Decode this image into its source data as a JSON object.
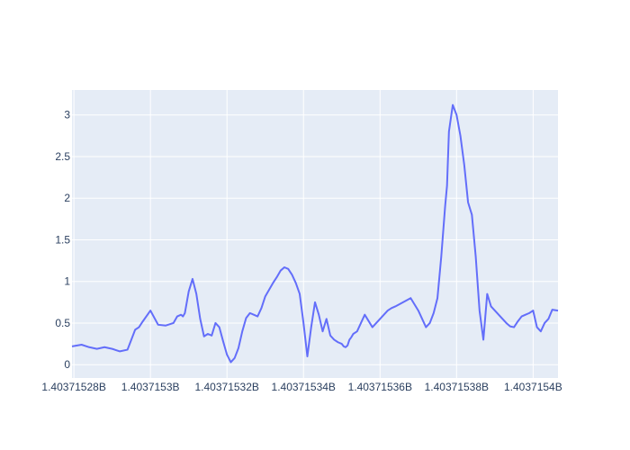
{
  "chart_data": {
    "type": "line",
    "title": "",
    "xlabel": "",
    "ylabel": "",
    "x_ticks": [
      {
        "value": 1403715280,
        "label": "1.40371528B"
      },
      {
        "value": 1403715300,
        "label": "1.4037153B"
      },
      {
        "value": 1403715320,
        "label": "1.40371532B"
      },
      {
        "value": 1403715340,
        "label": "1.40371534B"
      },
      {
        "value": 1403715360,
        "label": "1.40371536B"
      },
      {
        "value": 1403715380,
        "label": "1.40371538B"
      },
      {
        "value": 1403715400,
        "label": "1.4037154B"
      }
    ],
    "y_ticks": [
      {
        "value": 0,
        "label": "0"
      },
      {
        "value": 0.5,
        "label": "0.5"
      },
      {
        "value": 1,
        "label": "1"
      },
      {
        "value": 1.5,
        "label": "1.5"
      },
      {
        "value": 2,
        "label": "2"
      },
      {
        "value": 2.5,
        "label": "2.5"
      },
      {
        "value": 3,
        "label": "3"
      }
    ],
    "xlim": [
      1403715279.5,
      1403715406.5
    ],
    "ylim": [
      -0.16,
      3.3
    ],
    "grid": true,
    "colors": {
      "line": "#636efa",
      "plot_bg": "#e5ecf6",
      "grid": "#ffffff",
      "tick_text": "#2a3f5f"
    },
    "series": [
      {
        "x": [
          1403715279.5,
          1403715282,
          1403715284,
          1403715286,
          1403715288,
          1403715290,
          1403715292,
          1403715294,
          1403715295,
          1403715296,
          1403715297,
          1403715298,
          1403715300,
          1403715302,
          1403715304,
          1403715306,
          1403715307,
          1403715308,
          1403715308.5,
          1403715309,
          1403715310,
          1403715311,
          1403715312,
          1403715313,
          1403715314,
          1403715315,
          1403715316,
          1403715317,
          1403715318,
          1403715319,
          1403715320,
          1403715321,
          1403715322,
          1403715323,
          1403715324,
          1403715325,
          1403715326,
          1403715327,
          1403715328,
          1403715329,
          1403715330,
          1403715332,
          1403715333,
          1403715334,
          1403715335,
          1403715336,
          1403715337,
          1403715338,
          1403715339,
          1403715340,
          1403715341,
          1403715342,
          1403715343,
          1403715344,
          1403715345,
          1403715346,
          1403715347,
          1403715348,
          1403715349,
          1403715350,
          1403715350.5,
          1403715351,
          1403715351.5,
          1403715352,
          1403715352.5,
          1403715353,
          1403715354,
          1403715356,
          1403715358,
          1403715360,
          1403715361,
          1403715362,
          1403715363,
          1403715364,
          1403715366,
          1403715368,
          1403715370,
          1403715372,
          1403715373,
          1403715374,
          1403715375,
          1403715376,
          1403715377,
          1403715377.5,
          1403715378,
          1403715379,
          1403715380,
          1403715381,
          1403715382,
          1403715383,
          1403715384,
          1403715385,
          1403715386,
          1403715387,
          1403715388,
          1403715389,
          1403715390,
          1403715391,
          1403715392,
          1403715393,
          1403715394,
          1403715395,
          1403715396,
          1403715397,
          1403715398,
          1403715399,
          1403715400,
          1403715401,
          1403715402,
          1403715403,
          1403715404,
          1403715405,
          1403715406.5
        ],
        "y": [
          0.22,
          0.24,
          0.21,
          0.19,
          0.21,
          0.19,
          0.16,
          0.18,
          0.3,
          0.42,
          0.45,
          0.52,
          0.65,
          0.48,
          0.47,
          0.5,
          0.58,
          0.6,
          0.58,
          0.62,
          0.88,
          1.03,
          0.85,
          0.55,
          0.34,
          0.37,
          0.35,
          0.5,
          0.45,
          0.28,
          0.12,
          0.03,
          0.08,
          0.2,
          0.4,
          0.56,
          0.62,
          0.6,
          0.58,
          0.68,
          0.82,
          0.98,
          1.05,
          1.13,
          1.17,
          1.15,
          1.08,
          0.98,
          0.85,
          0.5,
          0.1,
          0.45,
          0.75,
          0.6,
          0.4,
          0.55,
          0.35,
          0.3,
          0.27,
          0.25,
          0.22,
          0.21,
          0.23,
          0.3,
          0.33,
          0.37,
          0.4,
          0.6,
          0.45,
          0.55,
          0.6,
          0.65,
          0.68,
          0.7,
          0.75,
          0.8,
          0.65,
          0.45,
          0.5,
          0.62,
          0.8,
          1.3,
          1.9,
          2.15,
          2.8,
          3.12,
          3.0,
          2.75,
          2.4,
          1.95,
          1.8,
          1.3,
          0.65,
          0.3,
          0.85,
          0.7,
          0.65,
          0.6,
          0.55,
          0.5,
          0.46,
          0.45,
          0.52,
          0.58,
          0.6,
          0.62,
          0.65,
          0.45,
          0.4,
          0.5,
          0.55,
          0.66,
          0.65
        ]
      }
    ]
  }
}
